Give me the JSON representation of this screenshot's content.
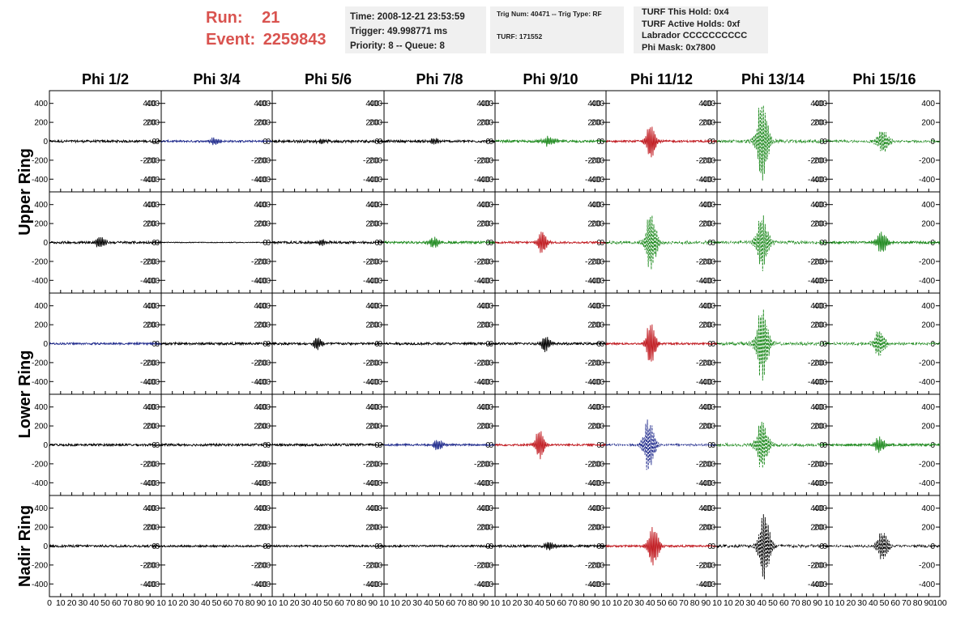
{
  "header": {
    "run_label": "Run:",
    "run_value": "21",
    "event_label": "Event:",
    "event_value": "2259843",
    "time": "Time: 2008-12-21 23:53:59",
    "trigger": "Trigger: 49.998771 ms",
    "priority": "Priority: 8 -- Queue: 8",
    "trig_num": "Trig Num: 40471 -- Trig Type: RF",
    "turf": "TURF: 171552",
    "turf_this_hold": "TURF This Hold: 0x4",
    "turf_active_holds": "TURF Active Holds: 0xf",
    "labrador": "Labrador CCCCCCCCCC",
    "phi_mask": "Phi Mask: 0x7800"
  },
  "colors": {
    "header_text": "#d9534f",
    "info_box_bg": "#f0f0f0",
    "black": "#000000",
    "blue": "#1f2a8c",
    "green": "#1e8a1e",
    "red": "#c0181e"
  },
  "chart_data": {
    "type": "line",
    "columns": [
      "Phi 1/2",
      "Phi 3/4",
      "Phi 5/6",
      "Phi 7/8",
      "Phi 9/10",
      "Phi 11/12",
      "Phi 13/14",
      "Phi 15/16"
    ],
    "rows": [
      "Upper Ring",
      "Lower Ring",
      "Nadir Ring"
    ],
    "xlim": [
      0,
      100
    ],
    "ylim": [
      -500,
      500
    ],
    "y_ticks": [
      -400,
      -200,
      0,
      200,
      400
    ],
    "x_ticks": [
      0,
      10,
      20,
      30,
      40,
      50,
      60,
      70,
      80,
      90,
      100
    ],
    "x_tick_labels_first": [
      "0",
      "10",
      "20",
      "30",
      "40",
      "50",
      "60",
      "70",
      "80",
      "90",
      "10"
    ],
    "x_tick_labels_mid": [
      "10",
      "20",
      "30",
      "40",
      "50",
      "60",
      "70",
      "80",
      "90",
      "10"
    ],
    "x_tick_labels_last": [
      "10",
      "20",
      "30",
      "40",
      "50",
      "60",
      "70",
      "80",
      "90",
      "100"
    ],
    "panels": [
      [
        {
          "color": "black",
          "noise": 12,
          "peak": 0,
          "center": 50,
          "width": 10,
          "style": "solid"
        },
        {
          "color": "blue",
          "noise": 10,
          "peak": 40,
          "center": 48,
          "width": 5,
          "style": "solid"
        },
        {
          "color": "black",
          "noise": 14,
          "peak": 30,
          "center": 45,
          "width": 6,
          "style": "solid"
        },
        {
          "color": "black",
          "noise": 12,
          "peak": 30,
          "center": 45,
          "width": 6,
          "style": "solid"
        },
        {
          "color": "green",
          "noise": 12,
          "peak": 50,
          "center": 48,
          "width": 7,
          "style": "solid"
        },
        {
          "color": "red",
          "noise": 10,
          "peak": 180,
          "center": 40,
          "width": 5,
          "style": "solid"
        },
        {
          "color": "green",
          "noise": 15,
          "peak": 420,
          "center": 40,
          "width": 6,
          "style": "dashed"
        },
        {
          "color": "green",
          "noise": 12,
          "peak": 120,
          "center": 48,
          "width": 7,
          "style": "dashed"
        }
      ],
      [
        {
          "color": "black",
          "noise": 12,
          "peak": 60,
          "center": 45,
          "width": 5,
          "style": "solid"
        },
        {
          "color": "black",
          "noise": 4,
          "peak": 0,
          "center": 50,
          "width": 10,
          "style": "solid"
        },
        {
          "color": "black",
          "noise": 12,
          "peak": 30,
          "center": 45,
          "width": 6,
          "style": "solid"
        },
        {
          "color": "green",
          "noise": 12,
          "peak": 50,
          "center": 45,
          "width": 6,
          "style": "solid"
        },
        {
          "color": "red",
          "noise": 10,
          "peak": 120,
          "center": 42,
          "width": 5,
          "style": "solid"
        },
        {
          "color": "green",
          "noise": 15,
          "peak": 300,
          "center": 40,
          "width": 6,
          "style": "dashed"
        },
        {
          "color": "green",
          "noise": 15,
          "peak": 300,
          "center": 40,
          "width": 6,
          "style": "dashed"
        },
        {
          "color": "green",
          "noise": 12,
          "peak": 110,
          "center": 47,
          "width": 6,
          "style": "solid"
        }
      ],
      [
        {
          "color": "blue",
          "noise": 10,
          "peak": 0,
          "center": 50,
          "width": 10,
          "style": "solid"
        },
        {
          "color": "black",
          "noise": 12,
          "peak": 0,
          "center": 50,
          "width": 10,
          "style": "solid"
        },
        {
          "color": "black",
          "noise": 12,
          "peak": 60,
          "center": 40,
          "width": 5,
          "style": "solid"
        },
        {
          "color": "black",
          "noise": 12,
          "peak": 0,
          "center": 50,
          "width": 10,
          "style": "solid"
        },
        {
          "color": "black",
          "noise": 12,
          "peak": 80,
          "center": 45,
          "width": 5,
          "style": "solid"
        },
        {
          "color": "red",
          "noise": 10,
          "peak": 220,
          "center": 40,
          "width": 5,
          "style": "solid"
        },
        {
          "color": "green",
          "noise": 15,
          "peak": 400,
          "center": 40,
          "width": 6,
          "style": "dashed"
        },
        {
          "color": "green",
          "noise": 12,
          "peak": 140,
          "center": 45,
          "width": 6,
          "style": "dashed"
        }
      ],
      [
        {
          "color": "black",
          "noise": 12,
          "peak": 0,
          "center": 50,
          "width": 10,
          "style": "solid"
        },
        {
          "color": "black",
          "noise": 12,
          "peak": 0,
          "center": 50,
          "width": 10,
          "style": "solid"
        },
        {
          "color": "black",
          "noise": 12,
          "peak": 0,
          "center": 50,
          "width": 10,
          "style": "solid"
        },
        {
          "color": "blue",
          "noise": 10,
          "peak": 50,
          "center": 48,
          "width": 6,
          "style": "solid"
        },
        {
          "color": "red",
          "noise": 10,
          "peak": 150,
          "center": 40,
          "width": 5,
          "style": "solid"
        },
        {
          "color": "blue",
          "noise": 10,
          "peak": 280,
          "center": 38,
          "width": 6,
          "style": "dashed"
        },
        {
          "color": "green",
          "noise": 15,
          "peak": 260,
          "center": 40,
          "width": 6,
          "style": "dashed"
        },
        {
          "color": "green",
          "noise": 12,
          "peak": 80,
          "center": 45,
          "width": 6,
          "style": "solid"
        }
      ],
      [
        {
          "color": "black",
          "noise": 12,
          "peak": 0,
          "center": 50,
          "width": 10,
          "style": "solid"
        },
        {
          "color": "black",
          "noise": 10,
          "peak": 0,
          "center": 50,
          "width": 10,
          "style": "solid"
        },
        {
          "color": "black",
          "noise": 10,
          "peak": 0,
          "center": 50,
          "width": 10,
          "style": "solid"
        },
        {
          "color": "black",
          "noise": 10,
          "peak": 0,
          "center": 50,
          "width": 10,
          "style": "solid"
        },
        {
          "color": "black",
          "noise": 12,
          "peak": 40,
          "center": 48,
          "width": 6,
          "style": "solid"
        },
        {
          "color": "red",
          "noise": 10,
          "peak": 200,
          "center": 42,
          "width": 6,
          "style": "solid"
        },
        {
          "color": "black",
          "noise": 15,
          "peak": 350,
          "center": 42,
          "width": 6,
          "style": "dashed"
        },
        {
          "color": "black",
          "noise": 12,
          "peak": 150,
          "center": 48,
          "width": 6,
          "style": "dashed"
        }
      ]
    ]
  }
}
